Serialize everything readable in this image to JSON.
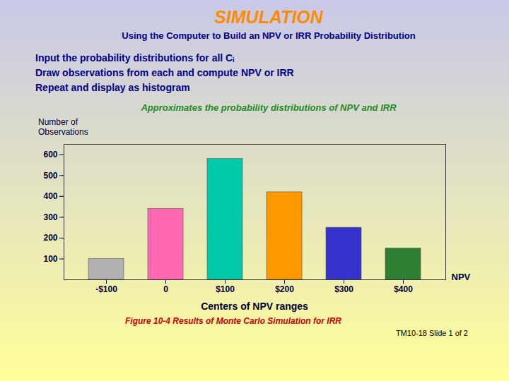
{
  "chart_data": {
    "type": "bar",
    "title": "SIMULATION",
    "subtitle": "Using the Computer to Build an NPV or IRR Probability Distribution",
    "xlabel": "Centers of NPV ranges",
    "ylabel": "Number of\nObservations",
    "annotations": [
      "Input the probability distributions for all Cᵢ",
      "Draw observations from each and compute NPV or IRR",
      "Repeat and display as histogram",
      "Approximates the probability distributions of NPV and IRR",
      "NPV",
      "Figure 10-4   Results of Monte Carlo Simulation for IRR",
      "TM10-18  Slide 1 of 2"
    ],
    "categories": [
      "-$100",
      "0",
      "$100",
      "$200",
      "$300",
      "$400"
    ],
    "values": [
      100,
      340,
      580,
      420,
      250,
      150
    ],
    "colors": [
      "#b0b0b0",
      "#ff69b4",
      "#00c9a7",
      "#ff9900",
      "#3333cc",
      "#2e7d32"
    ],
    "ylim": [
      0,
      650
    ],
    "yticks": [
      100,
      200,
      300,
      400,
      500,
      600
    ]
  }
}
